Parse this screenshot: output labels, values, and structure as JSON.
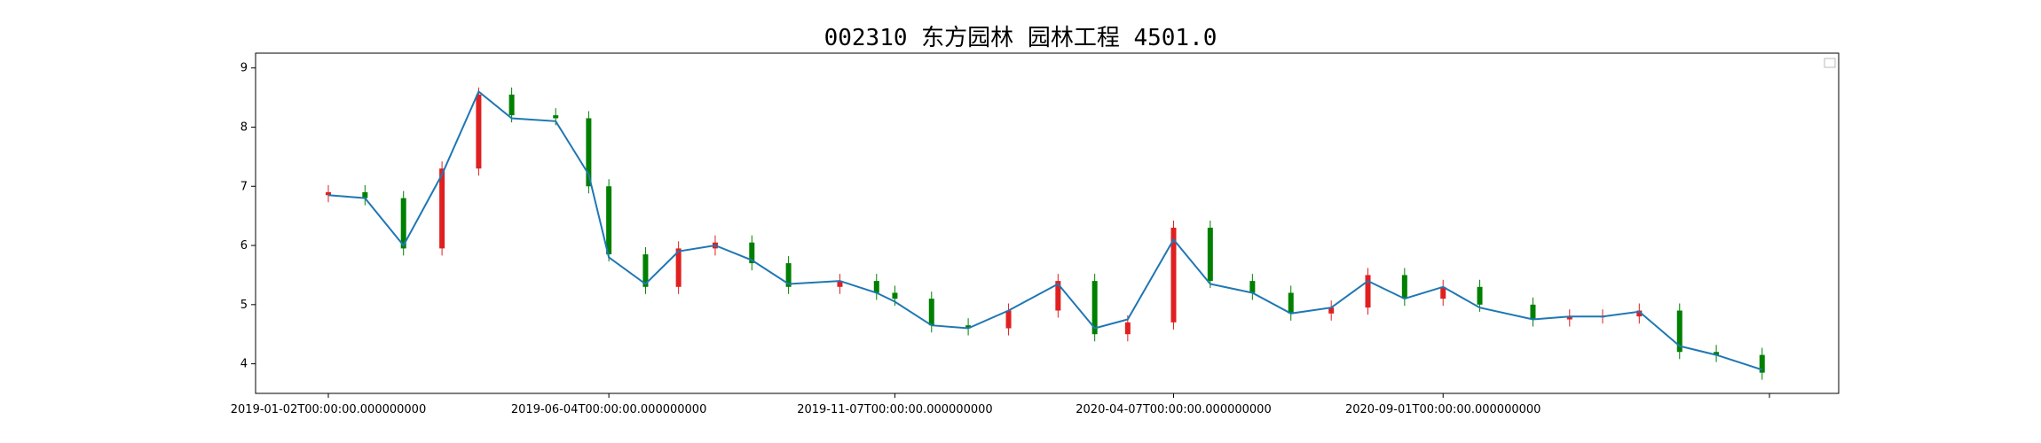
{
  "chart_data": {
    "type": "candlestick",
    "title": "002310 东方园林 园林工程 4501.0",
    "xlabel": "",
    "ylabel": "",
    "ylim": [
      3.5,
      9.25
    ],
    "yticks": [
      4,
      5,
      6,
      7,
      8,
      9
    ],
    "xtick_labels": [
      "2019-01-02T00:00:00.000000000",
      "2019-06-04T00:00:00.000000000",
      "2019-11-07T00:00:00.000000000",
      "2020-04-07T00:00:00.000000000",
      "2020-09-01T00:00:00.000000000",
      ""
    ],
    "x": [
      "2019-01-02",
      "2019-01-22",
      "2019-02-12",
      "2019-03-05",
      "2019-03-25",
      "2019-04-12",
      "2019-05-06",
      "2019-05-24",
      "2019-06-04",
      "2019-06-24",
      "2019-07-12",
      "2019-08-01",
      "2019-08-21",
      "2019-09-10",
      "2019-10-08",
      "2019-10-28",
      "2019-11-07",
      "2019-11-27",
      "2019-12-17",
      "2020-01-08",
      "2020-02-04",
      "2020-02-24",
      "2020-03-13",
      "2020-04-07",
      "2020-04-27",
      "2020-05-20",
      "2020-06-10",
      "2020-07-02",
      "2020-07-22",
      "2020-08-11",
      "2020-09-01",
      "2020-09-21",
      "2020-10-20",
      "2020-11-09",
      "2020-11-27",
      "2020-12-17",
      "2021-01-08",
      "2021-01-28",
      "2021-02-22"
    ],
    "close": [
      6.9,
      6.8,
      5.95,
      7.3,
      8.55,
      8.2,
      8.15,
      7.0,
      5.85,
      5.3,
      5.95,
      6.05,
      5.7,
      5.3,
      5.4,
      5.2,
      5.1,
      4.65,
      4.6,
      4.9,
      5.4,
      4.5,
      4.7,
      6.3,
      5.4,
      5.2,
      4.85,
      4.95,
      5.5,
      5.1,
      5.3,
      5.0,
      4.75,
      4.8,
      4.8,
      4.9,
      4.2,
      4.15,
      3.85
    ],
    "series": [
      {
        "name": "",
        "values": [
          6.85,
          6.8,
          6.0,
          7.2,
          8.6,
          8.15,
          8.1,
          7.2,
          5.8,
          5.35,
          5.9,
          6.0,
          5.75,
          5.35,
          5.4,
          5.2,
          5.05,
          4.65,
          4.6,
          4.9,
          5.35,
          4.6,
          4.75,
          6.1,
          5.35,
          5.2,
          4.85,
          4.95,
          5.4,
          5.1,
          5.3,
          4.95,
          4.75,
          4.8,
          4.8,
          4.88,
          4.3,
          4.15,
          3.9
        ]
      }
    ],
    "colors": {
      "up": "#e02020",
      "down": "#008000",
      "line": "#1f77b4"
    },
    "legend": "upper right",
    "grid": false
  }
}
